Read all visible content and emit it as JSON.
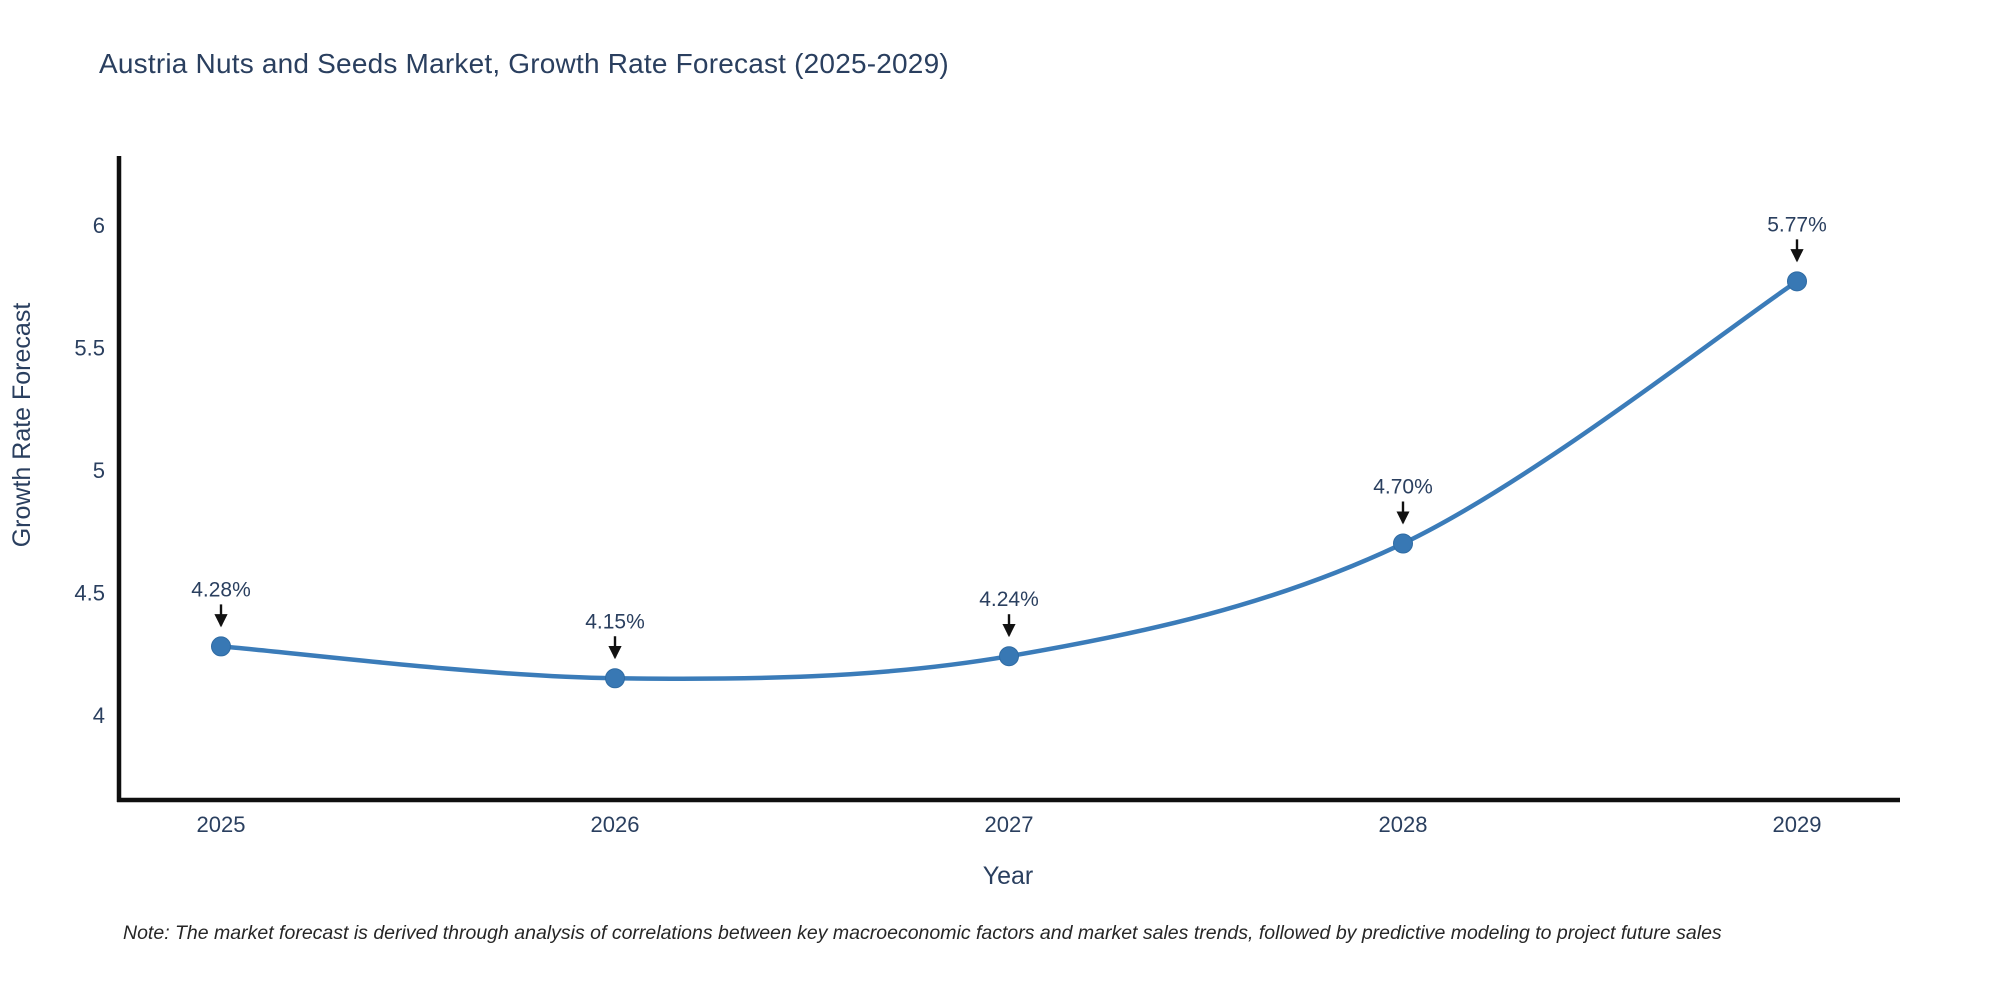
{
  "chart_data": {
    "type": "line",
    "title": "Austria Nuts and Seeds Market, Growth Rate Forecast (2025-2029)",
    "xlabel": "Year",
    "ylabel": "Growth Rate Forecast",
    "x": [
      2025,
      2026,
      2027,
      2028,
      2029
    ],
    "y": [
      4.28,
      4.15,
      4.24,
      4.7,
      5.77
    ],
    "series": [
      {
        "name": "Growth Rate Forecast",
        "values": [
          4.28,
          4.15,
          4.24,
          4.7,
          5.77
        ]
      }
    ],
    "annotations": [
      "4.28%",
      "4.15%",
      "4.24%",
      "4.70%",
      "5.77%"
    ],
    "xtick_labels": [
      "2025",
      "2026",
      "2027",
      "2028",
      "2029"
    ],
    "yticks": [
      4,
      4.5,
      5,
      5.5,
      6
    ],
    "ytick_labels": [
      "4",
      "4.5",
      "5",
      "5.5",
      "6"
    ],
    "ylim": [
      3.65,
      6.28
    ],
    "line_shape": "spline",
    "grid": false,
    "legend": false,
    "note": "Note: The market forecast is derived through analysis of correlations between key macroeconomic factors and market sales trends, followed by predictive modeling to project future sales",
    "colors": {
      "line": "#3b7cb9",
      "marker": "#3878b4",
      "marker_edge": "#2f6ba3",
      "arrow": "#111111",
      "axis": "#0f0f0f",
      "text": "#2a3f5f",
      "note_text": "#262626",
      "background": "#ffffff"
    }
  }
}
